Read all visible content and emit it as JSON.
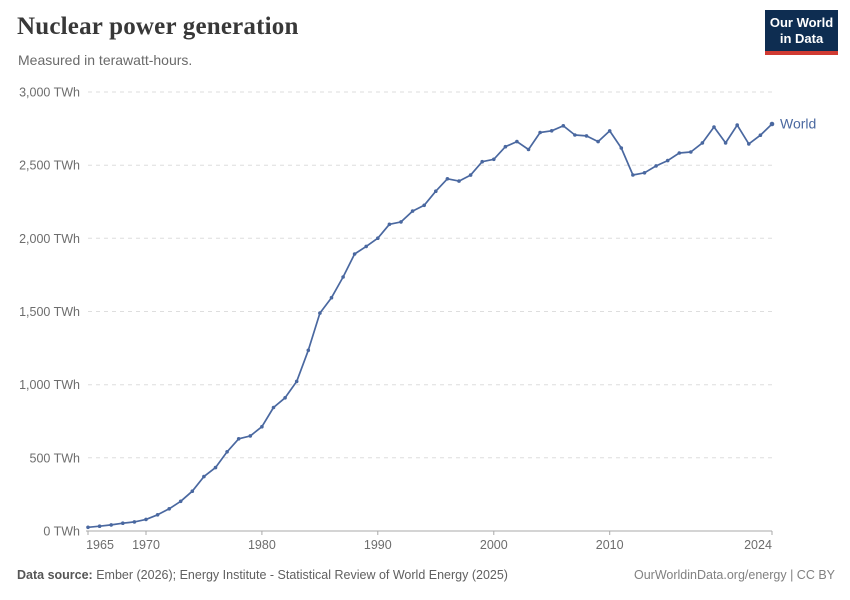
{
  "header": {
    "title": "Nuclear power generation",
    "subtitle": "Measured in terawatt-hours.",
    "logo": {
      "line1": "Our World",
      "line2": "in Data",
      "bg_color": "#0e2d51",
      "accent_color": "#d03a32"
    }
  },
  "chart_data": {
    "type": "line",
    "title": "Nuclear power generation",
    "xlabel": "",
    "ylabel": "TWh",
    "grid": "horizontal-dashed",
    "grid_color": "#dedede",
    "axis_color": "#a9a9a9",
    "xlim": [
      1965,
      2024
    ],
    "ylim": [
      0,
      3000
    ],
    "xticks": [
      1965,
      1970,
      1980,
      1990,
      2000,
      2010,
      2024
    ],
    "yticks": [
      {
        "value": 0,
        "label": "0 TWh"
      },
      {
        "value": 500,
        "label": "500 TWh"
      },
      {
        "value": 1000,
        "label": "1,000 TWh"
      },
      {
        "value": 1500,
        "label": "1,500 TWh"
      },
      {
        "value": 2000,
        "label": "2,000 TWh"
      },
      {
        "value": 2500,
        "label": "2,500 TWh"
      },
      {
        "value": 3000,
        "label": "3,000 TWh"
      }
    ],
    "x": [
      1965,
      1966,
      1967,
      1968,
      1969,
      1970,
      1971,
      1972,
      1973,
      1974,
      1975,
      1976,
      1977,
      1978,
      1979,
      1980,
      1981,
      1982,
      1983,
      1984,
      1985,
      1986,
      1987,
      1988,
      1989,
      1990,
      1991,
      1992,
      1993,
      1994,
      1995,
      1996,
      1997,
      1998,
      1999,
      2000,
      2001,
      2002,
      2003,
      2004,
      2005,
      2006,
      2007,
      2008,
      2009,
      2010,
      2011,
      2012,
      2013,
      2014,
      2015,
      2016,
      2017,
      2018,
      2019,
      2020,
      2021,
      2022,
      2023,
      2024
    ],
    "series": [
      {
        "name": "World",
        "color": "#4a68a0",
        "values": [
          25,
          33,
          42,
          53,
          62,
          79,
          111,
          152,
          203,
          272,
          372,
          433,
          541,
          630,
          650,
          713,
          844,
          910,
          1022,
          1235,
          1489,
          1594,
          1736,
          1893,
          1945,
          2001,
          2096,
          2112,
          2186,
          2226,
          2322,
          2407,
          2391,
          2432,
          2524,
          2540,
          2626,
          2661,
          2607,
          2723,
          2735,
          2769,
          2706,
          2700,
          2661,
          2734,
          2617,
          2433,
          2448,
          2495,
          2531,
          2583,
          2590,
          2652,
          2761,
          2652,
          2774,
          2645,
          2705,
          2781
        ]
      }
    ],
    "legend_position": "end-of-line-label"
  },
  "footer": {
    "source_prefix": "Data source:",
    "source_text": " Ember (2026); Energy Institute - Statistical Review of World Energy (2025)",
    "credit": "OurWorldinData.org/energy | CC BY"
  }
}
